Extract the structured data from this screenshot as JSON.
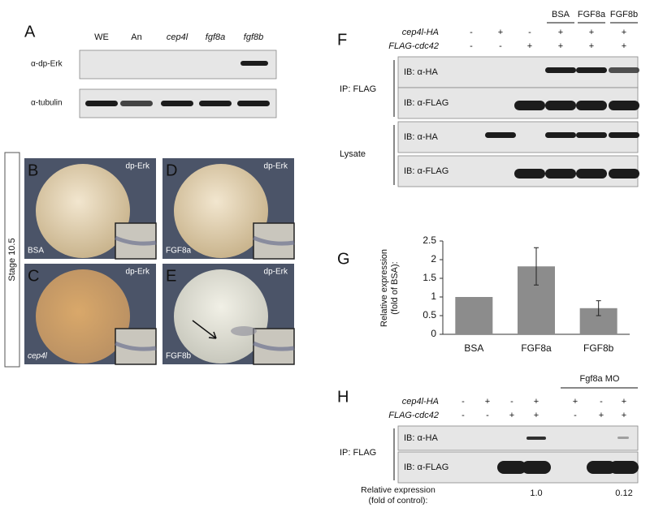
{
  "panel_a": {
    "label": "A",
    "lanes": [
      "WE",
      "An",
      "cep4l",
      "fgf8a",
      "fgf8b"
    ],
    "rows": [
      "α-dp-Erk",
      "α-tubulin"
    ]
  },
  "stage_label": "Stage 10.5",
  "embryo_panels": [
    {
      "label": "B",
      "stain": "dp-Erk",
      "treatment": "BSA"
    },
    {
      "label": "D",
      "stain": "dp-Erk",
      "treatment": "FGF8a"
    },
    {
      "label": "C",
      "stain": "dp-Erk",
      "treatment": "cep4l"
    },
    {
      "label": "E",
      "stain": "dp-Erk",
      "treatment": "FGF8b"
    }
  ],
  "panel_f": {
    "label": "F",
    "groups": [
      "BSA",
      "FGF8a",
      "FGF8b"
    ],
    "constructs": [
      {
        "name": "cep4l-HA",
        "signs": [
          "-",
          "+",
          "-",
          "+",
          "+",
          "+"
        ]
      },
      {
        "name": "FLAG-cdc42",
        "signs": [
          "-",
          "-",
          "+",
          "+",
          "+",
          "+"
        ]
      }
    ],
    "sections": [
      {
        "name": "IP: FLAG",
        "blots": [
          "IB: α-HA",
          "IB: α-FLAG"
        ]
      },
      {
        "name": "Lysate",
        "blots": [
          "IB: α-HA",
          "IB: α-FLAG"
        ]
      }
    ]
  },
  "panel_g": {
    "label": "G",
    "chart_data": {
      "type": "bar",
      "ylabel": [
        "Relative expression",
        "(fold of BSA):"
      ],
      "categories": [
        "BSA",
        "FGF8a",
        "FGF8b"
      ],
      "values": [
        1,
        1.82,
        0.7
      ],
      "errors": [
        null,
        0.5,
        0.2
      ],
      "color": "#8c8c8c",
      "ylim": [
        0,
        2.5
      ],
      "yticks": [
        0,
        0.5,
        1,
        1.5,
        2,
        2.5
      ]
    }
  },
  "panel_h": {
    "label": "H",
    "group": "Fgf8a MO",
    "constructs": [
      {
        "name": "cep4l-HA",
        "signs": [
          "-",
          "+",
          "-",
          "+",
          "+",
          "-",
          "+"
        ]
      },
      {
        "name": "FLAG-cdc42",
        "signs": [
          "-",
          "-",
          "+",
          "+",
          "-",
          "+",
          "+"
        ]
      }
    ],
    "section": {
      "name": "IP: FLAG",
      "blots": [
        "IB: α-HA",
        "IB: α-FLAG"
      ]
    },
    "quantification": {
      "label": [
        "Relative expression",
        "(fold of control):"
      ],
      "values": [
        "1.0",
        "0.12"
      ]
    }
  }
}
